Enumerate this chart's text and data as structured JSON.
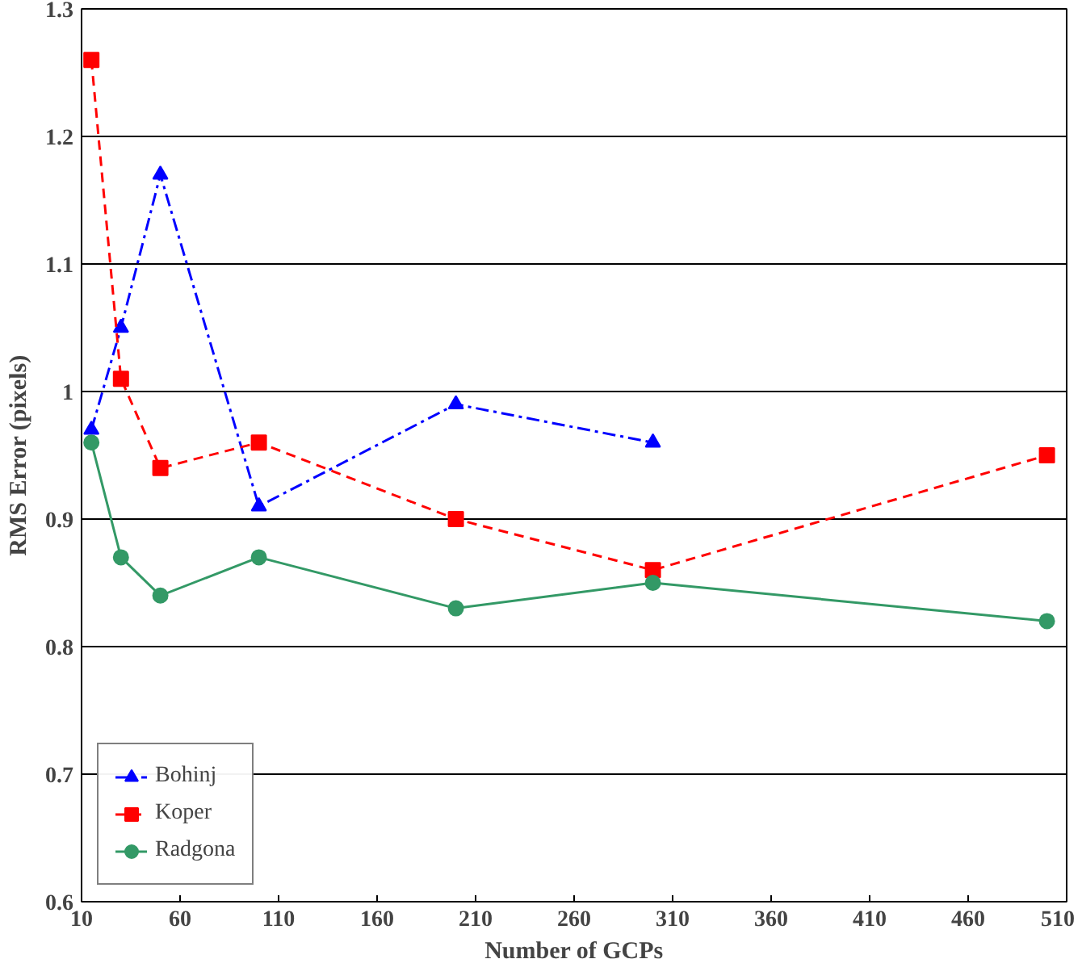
{
  "chart_data": {
    "type": "line",
    "xlabel": "Number of GCPs",
    "ylabel": "RMS Error (pixels)",
    "xlim": [
      10,
      510
    ],
    "xticks": [
      10,
      60,
      110,
      160,
      210,
      260,
      310,
      360,
      410,
      460,
      510
    ],
    "ylim": [
      0.6,
      1.3
    ],
    "yticks": [
      0.6,
      0.7,
      0.8,
      0.9,
      1,
      1.1,
      1.2,
      1.3
    ],
    "grid": "y",
    "legend": "bottom left",
    "series": [
      {
        "name": "Bohinj",
        "color": "#0000ff",
        "marker": "triangle",
        "line_style": "dashdot",
        "x": [
          15,
          30,
          50,
          100,
          200,
          300
        ],
        "values": [
          0.97,
          1.05,
          1.17,
          0.91,
          0.99,
          0.96
        ]
      },
      {
        "name": "Koper",
        "color": "#ff0000",
        "marker": "square",
        "line_style": "dashed",
        "x": [
          15,
          30,
          50,
          100,
          200,
          300,
          500
        ],
        "values": [
          1.26,
          1.01,
          0.94,
          0.96,
          0.9,
          0.86,
          0.95
        ]
      },
      {
        "name": "Radgona",
        "color": "#339966",
        "marker": "circle",
        "line_style": "solid",
        "x": [
          15,
          30,
          50,
          100,
          200,
          300,
          500
        ],
        "values": [
          0.96,
          0.87,
          0.84,
          0.87,
          0.83,
          0.85,
          0.82
        ]
      }
    ]
  }
}
